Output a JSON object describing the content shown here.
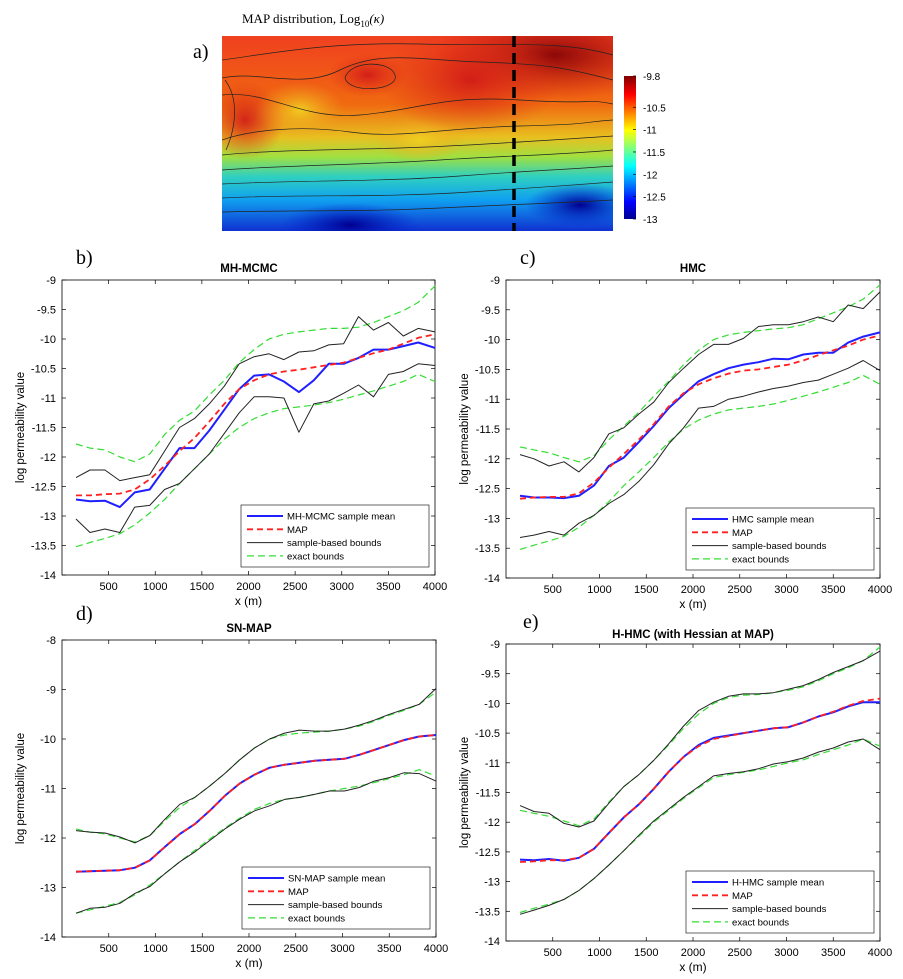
{
  "panel_a": {
    "label": "a)",
    "title": "MAP distribution, Log",
    "title_sub": "10",
    "title_tail": "(κ)",
    "colorbar_ticks": [
      "-9.8",
      "-10.5",
      "-11",
      "-11.5",
      "-12",
      "-12.5",
      "-13"
    ],
    "colorbar_values": [
      -9.8,
      -10.5,
      -11,
      -11.5,
      -12,
      -12.5,
      -13
    ],
    "colorbar_range": [
      -13,
      -9.8
    ],
    "colormap": "jet",
    "colors": [
      "#00008f",
      "#0000ff",
      "#00ffff",
      "#ffff00",
      "#ff0000",
      "#800000"
    ]
  },
  "colors": {
    "mean": "#1f1fff",
    "map": "#ff2020",
    "sample_bounds": "#222222",
    "exact_bounds": "#33dd33"
  },
  "chart_data": [
    {
      "type": "line",
      "label": "b)",
      "title": "MH-MCMC",
      "xlabel": "x (m)",
      "ylabel": "log permeability value",
      "xlim": [
        0,
        4000
      ],
      "ylim": [
        -14,
        -9
      ],
      "xticks": [
        500,
        1000,
        1500,
        2000,
        2500,
        3000,
        3500,
        4000
      ],
      "yticks": [
        -9,
        -9.5,
        -10,
        -10.5,
        -11,
        -11.5,
        -12,
        -12.5,
        -13,
        -13.5,
        -14
      ],
      "legend_position": "lower-right",
      "x": [
        150,
        300,
        460,
        620,
        780,
        940,
        1100,
        1260,
        1420,
        1580,
        1740,
        1900,
        2060,
        2220,
        2380,
        2540,
        2700,
        2860,
        3020,
        3180,
        3340,
        3500,
        3660,
        3820,
        4000
      ],
      "series": [
        {
          "name": "MH-MCMC sample mean",
          "style": "mean",
          "values": [
            -12.72,
            -12.75,
            -12.74,
            -12.85,
            -12.6,
            -12.55,
            -12.2,
            -11.85,
            -11.85,
            -11.55,
            -11.2,
            -10.85,
            -10.62,
            -10.6,
            -10.72,
            -10.9,
            -10.7,
            -10.42,
            -10.42,
            -10.32,
            -10.18,
            -10.18,
            -10.12,
            -10.06,
            -10.15
          ]
        },
        {
          "name": "MAP",
          "style": "map",
          "values": [
            -12.65,
            -12.65,
            -12.63,
            -12.62,
            -12.55,
            -12.38,
            -12.15,
            -11.9,
            -11.68,
            -11.4,
            -11.1,
            -10.85,
            -10.7,
            -10.6,
            -10.55,
            -10.52,
            -10.48,
            -10.44,
            -10.4,
            -10.32,
            -10.24,
            -10.18,
            -10.08,
            -9.98,
            -9.92
          ]
        },
        {
          "name": "sample-based bounds",
          "style": "sample_bounds",
          "values": [
            -12.35,
            -12.22,
            -12.22,
            -12.4,
            -12.35,
            -12.3,
            -11.9,
            -11.5,
            -11.35,
            -11.1,
            -10.8,
            -10.42,
            -10.3,
            -10.25,
            -10.35,
            -10.22,
            -10.2,
            -10.1,
            -10.08,
            -9.62,
            -9.85,
            -9.72,
            -9.95,
            -9.82,
            -9.88
          ]
        },
        {
          "name": "",
          "style": "sample_bounds",
          "values": [
            -13.05,
            -13.28,
            -13.22,
            -13.28,
            -12.85,
            -12.82,
            -12.55,
            -12.45,
            -12.2,
            -11.95,
            -11.6,
            -11.25,
            -10.98,
            -10.98,
            -11.0,
            -11.58,
            -11.1,
            -11.05,
            -10.92,
            -10.78,
            -10.98,
            -10.6,
            -10.55,
            -10.42,
            -10.45
          ]
        },
        {
          "name": "exact bounds",
          "style": "exact_bounds",
          "values": [
            -11.78,
            -11.85,
            -11.88,
            -12.0,
            -12.08,
            -11.95,
            -11.62,
            -11.38,
            -11.22,
            -10.95,
            -10.7,
            -10.4,
            -10.18,
            -10.0,
            -9.92,
            -9.88,
            -9.85,
            -9.82,
            -9.82,
            -9.8,
            -9.72,
            -9.62,
            -9.52,
            -9.38,
            -9.1
          ]
        },
        {
          "name": "",
          "style": "exact_bounds",
          "values": [
            -13.52,
            -13.45,
            -13.38,
            -13.3,
            -13.15,
            -12.95,
            -12.72,
            -12.45,
            -12.2,
            -11.95,
            -11.7,
            -11.5,
            -11.35,
            -11.25,
            -11.18,
            -11.15,
            -11.12,
            -11.08,
            -11.02,
            -10.95,
            -10.88,
            -10.8,
            -10.72,
            -10.6,
            -10.72
          ]
        }
      ]
    },
    {
      "type": "line",
      "label": "c)",
      "title": "HMC",
      "xlabel": "x (m)",
      "ylabel": "log permeability value",
      "xlim": [
        0,
        4000
      ],
      "ylim": [
        -14,
        -9
      ],
      "xticks": [
        500,
        1000,
        1500,
        2000,
        2500,
        3000,
        3500,
        4000
      ],
      "yticks": [
        -9,
        -9.5,
        -10,
        -10.5,
        -11,
        -11.5,
        -12,
        -12.5,
        -13,
        -13.5,
        -14
      ],
      "legend_position": "lower-right",
      "x": [
        150,
        300,
        460,
        620,
        780,
        940,
        1100,
        1260,
        1420,
        1580,
        1740,
        1900,
        2060,
        2220,
        2380,
        2540,
        2700,
        2860,
        3020,
        3180,
        3340,
        3500,
        3660,
        3820,
        4000
      ],
      "series": [
        {
          "name": "HMC sample mean",
          "style": "mean",
          "values": [
            -12.62,
            -12.65,
            -12.65,
            -12.66,
            -12.62,
            -12.45,
            -12.12,
            -11.98,
            -11.72,
            -11.45,
            -11.15,
            -10.92,
            -10.7,
            -10.58,
            -10.48,
            -10.42,
            -10.38,
            -10.32,
            -10.33,
            -10.25,
            -10.22,
            -10.22,
            -10.05,
            -9.95,
            -9.88
          ]
        },
        {
          "name": "MAP",
          "style": "map",
          "values": [
            -12.67,
            -12.65,
            -12.64,
            -12.64,
            -12.58,
            -12.4,
            -12.15,
            -11.92,
            -11.68,
            -11.42,
            -11.12,
            -10.9,
            -10.75,
            -10.65,
            -10.57,
            -10.52,
            -10.5,
            -10.46,
            -10.42,
            -10.35,
            -10.26,
            -10.18,
            -10.1,
            -10.0,
            -9.93
          ]
        },
        {
          "name": "sample-based bounds",
          "style": "sample_bounds",
          "values": [
            -11.93,
            -12.0,
            -12.12,
            -12.05,
            -12.22,
            -11.98,
            -11.58,
            -11.48,
            -11.25,
            -11.05,
            -10.72,
            -10.48,
            -10.25,
            -10.08,
            -10.08,
            -9.98,
            -9.78,
            -9.75,
            -9.75,
            -9.7,
            -9.62,
            -9.7,
            -9.42,
            -9.48,
            -9.2
          ]
        },
        {
          "name": "",
          "style": "sample_bounds",
          "values": [
            -13.32,
            -13.28,
            -13.22,
            -13.28,
            -13.08,
            -12.95,
            -12.75,
            -12.6,
            -12.38,
            -12.1,
            -11.75,
            -11.48,
            -11.15,
            -11.12,
            -11.0,
            -10.95,
            -10.88,
            -10.82,
            -10.78,
            -10.72,
            -10.68,
            -10.58,
            -10.48,
            -10.35,
            -10.52
          ]
        },
        {
          "name": "exact bounds",
          "style": "exact_bounds",
          "values": [
            -11.8,
            -11.85,
            -11.9,
            -11.98,
            -12.05,
            -11.95,
            -11.68,
            -11.45,
            -11.22,
            -10.95,
            -10.7,
            -10.42,
            -10.18,
            -10.0,
            -9.92,
            -9.88,
            -9.85,
            -9.82,
            -9.8,
            -9.75,
            -9.65,
            -9.55,
            -9.45,
            -9.32,
            -9.08
          ]
        },
        {
          "name": "",
          "style": "exact_bounds",
          "values": [
            -13.52,
            -13.45,
            -13.38,
            -13.3,
            -13.15,
            -12.95,
            -12.72,
            -12.45,
            -12.22,
            -11.98,
            -11.72,
            -11.5,
            -11.35,
            -11.25,
            -11.18,
            -11.15,
            -11.12,
            -11.08,
            -11.02,
            -10.95,
            -10.88,
            -10.8,
            -10.72,
            -10.6,
            -10.75
          ]
        }
      ]
    },
    {
      "type": "line",
      "label": "d)",
      "title": "SN-MAP",
      "xlabel": "x (m)",
      "ylabel": "log permeability value",
      "xlim": [
        0,
        4000
      ],
      "ylim": [
        -14,
        -8
      ],
      "xticks": [
        500,
        1000,
        1500,
        2000,
        2500,
        3000,
        3500,
        4000
      ],
      "yticks": [
        -8,
        -9,
        -10,
        -11,
        -12,
        -13,
        -14
      ],
      "legend_position": "lower-right",
      "x": [
        150,
        300,
        460,
        620,
        780,
        940,
        1100,
        1260,
        1420,
        1580,
        1740,
        1900,
        2060,
        2220,
        2380,
        2540,
        2700,
        2860,
        3020,
        3180,
        3340,
        3500,
        3660,
        3820,
        4000
      ],
      "series": [
        {
          "name": "SN-MAP sample mean",
          "style": "mean",
          "values": [
            -12.68,
            -12.67,
            -12.66,
            -12.65,
            -12.6,
            -12.45,
            -12.18,
            -11.92,
            -11.72,
            -11.45,
            -11.15,
            -10.9,
            -10.72,
            -10.58,
            -10.52,
            -10.48,
            -10.44,
            -10.42,
            -10.4,
            -10.32,
            -10.22,
            -10.12,
            -10.02,
            -9.95,
            -9.92
          ]
        },
        {
          "name": "MAP",
          "style": "map",
          "values": [
            -12.68,
            -12.67,
            -12.66,
            -12.65,
            -12.6,
            -12.45,
            -12.18,
            -11.92,
            -11.72,
            -11.45,
            -11.15,
            -10.9,
            -10.72,
            -10.58,
            -10.52,
            -10.48,
            -10.44,
            -10.42,
            -10.4,
            -10.32,
            -10.22,
            -10.12,
            -10.02,
            -9.95,
            -9.92
          ]
        },
        {
          "name": "sample-based bounds",
          "style": "sample_bounds",
          "values": [
            -11.85,
            -11.88,
            -11.9,
            -11.98,
            -12.1,
            -11.95,
            -11.62,
            -11.32,
            -11.18,
            -10.95,
            -10.7,
            -10.42,
            -10.18,
            -10.0,
            -9.88,
            -9.82,
            -9.84,
            -9.84,
            -9.8,
            -9.72,
            -9.62,
            -9.5,
            -9.4,
            -9.3,
            -8.98
          ]
        },
        {
          "name": "",
          "style": "sample_bounds",
          "values": [
            -13.52,
            -13.42,
            -13.4,
            -13.32,
            -13.12,
            -12.98,
            -12.72,
            -12.48,
            -12.28,
            -12.05,
            -11.82,
            -11.62,
            -11.45,
            -11.35,
            -11.22,
            -11.18,
            -11.12,
            -11.05,
            -11.05,
            -10.98,
            -10.85,
            -10.78,
            -10.68,
            -10.7,
            -10.85
          ]
        },
        {
          "name": "exact bounds",
          "style": "exact_bounds",
          "values": [
            -11.82,
            -11.88,
            -11.92,
            -12.0,
            -12.08,
            -11.95,
            -11.65,
            -11.38,
            -11.18,
            -10.95,
            -10.7,
            -10.42,
            -10.18,
            -10.0,
            -9.92,
            -9.88,
            -9.86,
            -9.84,
            -9.8,
            -9.74,
            -9.64,
            -9.52,
            -9.42,
            -9.3,
            -9.05
          ]
        },
        {
          "name": "",
          "style": "exact_bounds",
          "values": [
            -13.52,
            -13.45,
            -13.38,
            -13.3,
            -13.15,
            -12.95,
            -12.72,
            -12.48,
            -12.25,
            -12.02,
            -11.8,
            -11.6,
            -11.42,
            -11.3,
            -11.22,
            -11.18,
            -11.12,
            -11.05,
            -11.0,
            -10.95,
            -10.88,
            -10.8,
            -10.72,
            -10.62,
            -10.75
          ]
        }
      ]
    },
    {
      "type": "line",
      "label": "e)",
      "title": "H-HMC (with Hessian at MAP)",
      "xlabel": "x (m)",
      "ylabel": "log permeability value",
      "xlim": [
        0,
        4000
      ],
      "ylim": [
        -14,
        -9
      ],
      "xticks": [
        500,
        1000,
        1500,
        2000,
        2500,
        3000,
        3500,
        4000
      ],
      "yticks": [
        -9,
        -9.5,
        -10,
        -10.5,
        -11,
        -11.5,
        -12,
        -12.5,
        -13,
        -13.5,
        -14
      ],
      "legend_position": "lower-right",
      "x": [
        150,
        300,
        460,
        620,
        780,
        940,
        1100,
        1260,
        1420,
        1580,
        1740,
        1900,
        2060,
        2220,
        2380,
        2540,
        2700,
        2860,
        3020,
        3180,
        3340,
        3500,
        3660,
        3820,
        4000
      ],
      "series": [
        {
          "name": "H-HMC sample mean",
          "style": "mean",
          "values": [
            -12.63,
            -12.64,
            -12.62,
            -12.65,
            -12.6,
            -12.45,
            -12.18,
            -11.92,
            -11.7,
            -11.44,
            -11.15,
            -10.9,
            -10.7,
            -10.58,
            -10.54,
            -10.5,
            -10.46,
            -10.42,
            -10.4,
            -10.32,
            -10.22,
            -10.15,
            -10.05,
            -9.98,
            -9.98
          ]
        },
        {
          "name": "MAP",
          "style": "map",
          "values": [
            -12.67,
            -12.66,
            -12.64,
            -12.64,
            -12.6,
            -12.45,
            -12.18,
            -11.92,
            -11.7,
            -11.44,
            -11.15,
            -10.9,
            -10.72,
            -10.6,
            -10.55,
            -10.5,
            -10.46,
            -10.42,
            -10.4,
            -10.32,
            -10.22,
            -10.14,
            -10.04,
            -9.96,
            -9.92
          ]
        },
        {
          "name": "sample-based bounds",
          "style": "sample_bounds",
          "values": [
            -11.72,
            -11.82,
            -11.85,
            -12.02,
            -12.08,
            -11.98,
            -11.68,
            -11.4,
            -11.2,
            -10.96,
            -10.68,
            -10.38,
            -10.12,
            -9.98,
            -9.88,
            -9.84,
            -9.84,
            -9.82,
            -9.76,
            -9.7,
            -9.6,
            -9.48,
            -9.38,
            -9.28,
            -9.12
          ]
        },
        {
          "name": "",
          "style": "sample_bounds",
          "values": [
            -13.55,
            -13.48,
            -13.4,
            -13.3,
            -13.15,
            -12.95,
            -12.72,
            -12.48,
            -12.22,
            -11.98,
            -11.78,
            -11.58,
            -11.4,
            -11.22,
            -11.18,
            -11.15,
            -11.1,
            -11.02,
            -10.98,
            -10.92,
            -10.82,
            -10.75,
            -10.65,
            -10.6,
            -10.78
          ]
        },
        {
          "name": "exact bounds",
          "style": "exact_bounds",
          "values": [
            -11.8,
            -11.85,
            -11.9,
            -11.98,
            -12.06,
            -11.95,
            -11.66,
            -11.4,
            -11.2,
            -10.96,
            -10.7,
            -10.42,
            -10.18,
            -10.0,
            -9.9,
            -9.86,
            -9.85,
            -9.82,
            -9.78,
            -9.72,
            -9.62,
            -9.5,
            -9.4,
            -9.28,
            -9.05
          ]
        },
        {
          "name": "",
          "style": "exact_bounds",
          "values": [
            -13.52,
            -13.45,
            -13.38,
            -13.3,
            -13.15,
            -12.95,
            -12.72,
            -12.48,
            -12.24,
            -12.0,
            -11.8,
            -11.6,
            -11.42,
            -11.25,
            -11.2,
            -11.16,
            -11.12,
            -11.06,
            -11.0,
            -10.95,
            -10.86,
            -10.78,
            -10.7,
            -10.6,
            -10.72
          ]
        }
      ]
    }
  ]
}
